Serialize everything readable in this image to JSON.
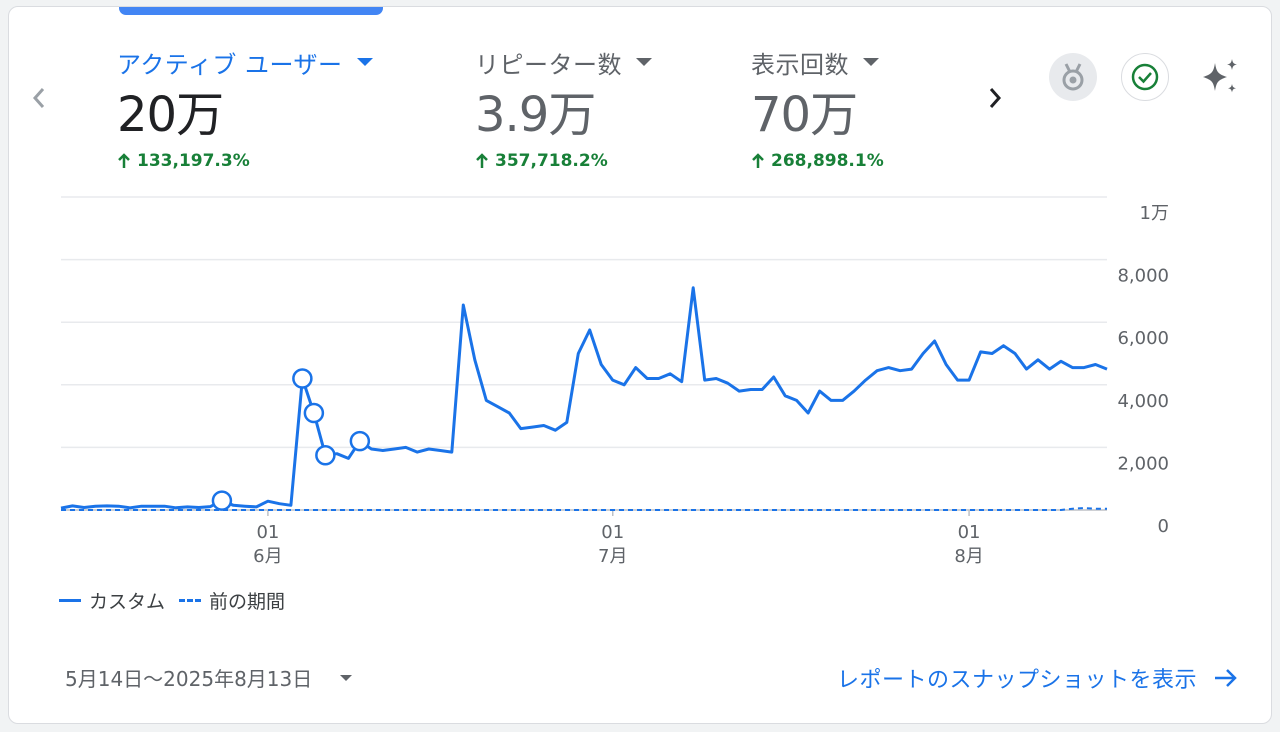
{
  "metrics": [
    {
      "label": "アクティブ ユーザー",
      "value": "20万",
      "change": "133,197.3%"
    },
    {
      "label": "リピーター数",
      "value": "3.9万",
      "change": "357,718.2%"
    },
    {
      "label": "表示回数",
      "value": "70万",
      "change": "268,898.1%"
    }
  ],
  "icons": {
    "medal": "medal-icon",
    "check": "check-circle-icon",
    "sparkle": "sparkle-icon"
  },
  "legend": {
    "current": "カスタム",
    "previous": "前の期間"
  },
  "footer": {
    "date_range": "5月14日～2025年8月13日",
    "snapshot_link": "レポートのスナップショットを表示"
  },
  "colors": {
    "accent": "#1a73e8",
    "positive": "#188038"
  },
  "chart_data": {
    "type": "line",
    "y_ticks": [
      "0",
      "2,000",
      "4,000",
      "6,000",
      "8,000",
      "1万"
    ],
    "ylim": [
      0,
      10000
    ],
    "x_ticks": [
      {
        "day": "01",
        "month": "6月",
        "index": 18
      },
      {
        "day": "01",
        "month": "7月",
        "index": 48
      },
      {
        "day": "01",
        "month": "8月",
        "index": 79
      }
    ],
    "series": [
      {
        "name": "カスタム",
        "style": "solid",
        "values": [
          60,
          130,
          80,
          120,
          130,
          120,
          70,
          120,
          120,
          120,
          70,
          100,
          80,
          110,
          300,
          150,
          120,
          100,
          280,
          200,
          150,
          4200,
          3100,
          1750,
          1800,
          1650,
          2200,
          1950,
          1900,
          1950,
          2000,
          1850,
          1950,
          1900,
          1850,
          6550,
          4800,
          3500,
          3300,
          3100,
          2600,
          2650,
          2700,
          2550,
          2800,
          5000,
          5750,
          4650,
          4150,
          4000,
          4550,
          4200,
          4200,
          4350,
          4100,
          7100,
          4150,
          4200,
          4050,
          3800,
          3850,
          3850,
          4250,
          3650,
          3500,
          3100,
          3800,
          3500,
          3500,
          3800,
          4150,
          4450,
          4550,
          4450,
          4500,
          5000,
          5400,
          4650,
          4150,
          4150,
          5050,
          5000,
          5250,
          5000,
          4500,
          4800,
          4500,
          4750,
          4550,
          4550,
          4650,
          4500
        ],
        "highlighted_points": [
          14,
          21,
          22,
          23,
          26
        ]
      },
      {
        "name": "前の期間",
        "style": "dashed",
        "values": [
          0,
          0,
          0,
          0,
          0,
          0,
          0,
          0,
          0,
          0,
          0,
          0,
          0,
          0,
          0,
          0,
          0,
          0,
          0,
          0,
          0,
          0,
          0,
          0,
          0,
          0,
          0,
          0,
          0,
          0,
          0,
          0,
          0,
          0,
          0,
          0,
          0,
          0,
          0,
          0,
          0,
          0,
          0,
          0,
          0,
          0,
          0,
          0,
          0,
          0,
          0,
          0,
          0,
          0,
          0,
          0,
          0,
          0,
          0,
          0,
          0,
          0,
          0,
          0,
          0,
          0,
          0,
          0,
          0,
          0,
          0,
          0,
          0,
          0,
          0,
          0,
          0,
          0,
          0,
          0,
          0,
          0,
          0,
          0,
          0,
          0,
          0,
          0,
          40,
          60,
          40,
          40
        ]
      }
    ]
  }
}
